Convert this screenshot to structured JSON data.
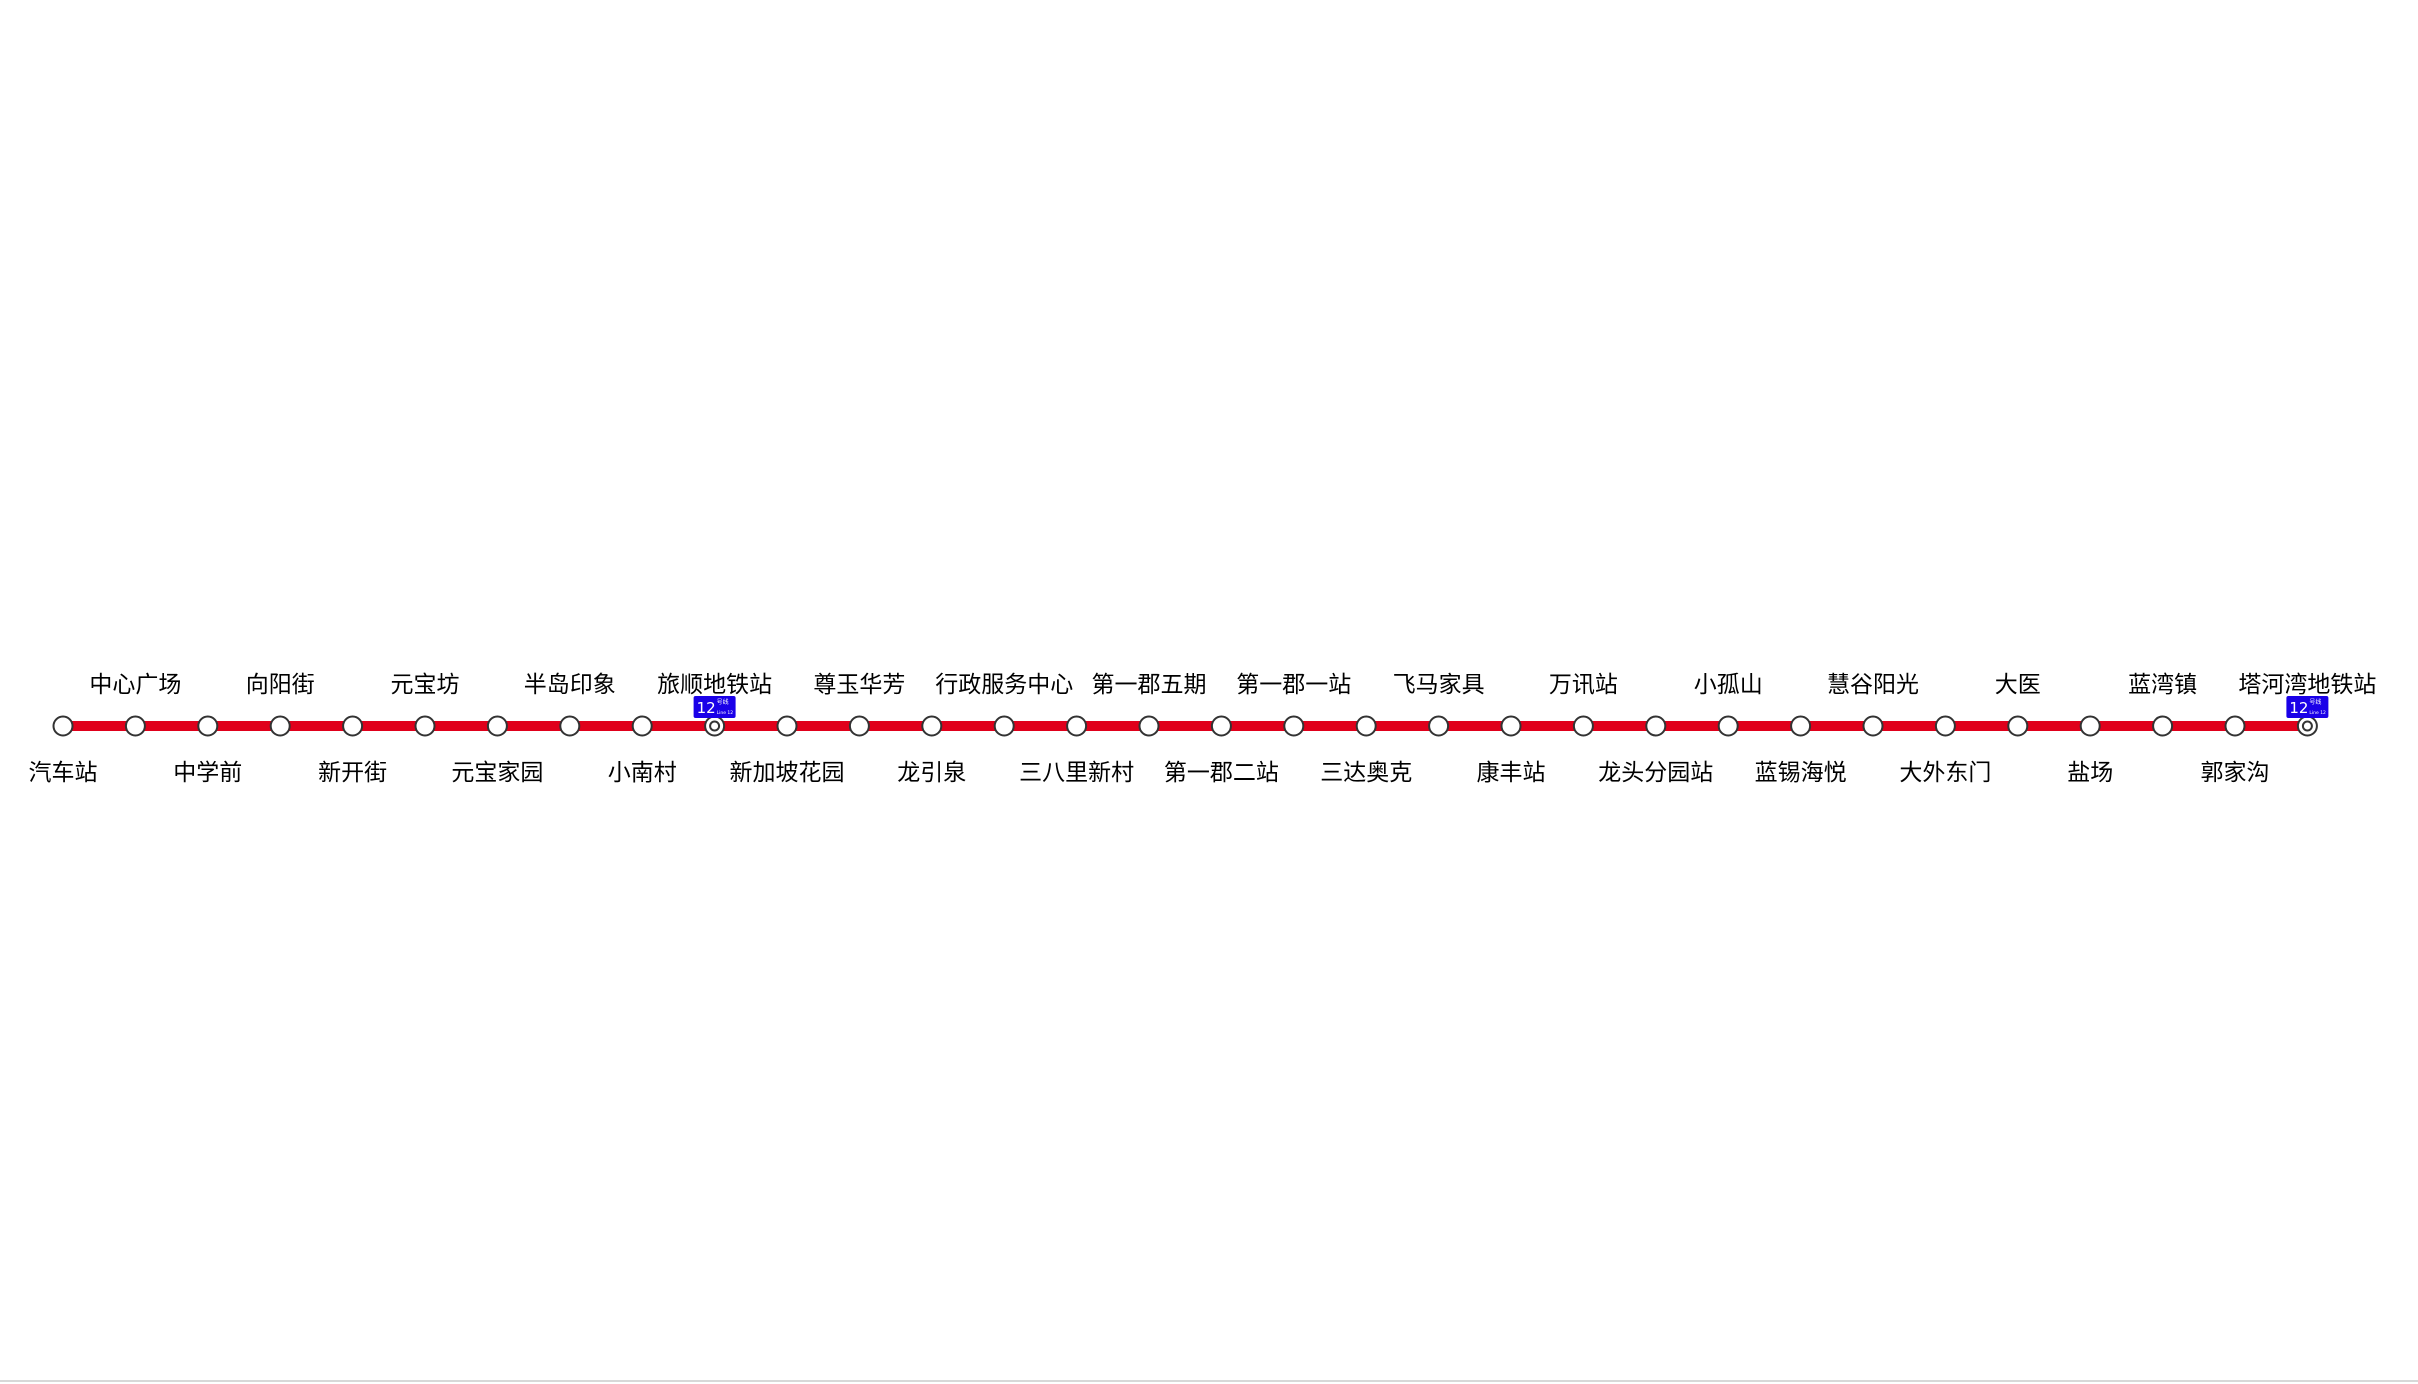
{
  "colors": {
    "line": "#E0001B",
    "station_fill": "#ffffff",
    "station_stroke": "#333333",
    "transfer_badge": "#1A00E8",
    "label": "#000000"
  },
  "stations": [
    {
      "name": "汽车站",
      "label_side": "below"
    },
    {
      "name": "中心广场",
      "label_side": "above"
    },
    {
      "name": "中学前",
      "label_side": "below"
    },
    {
      "name": "向阳街",
      "label_side": "above"
    },
    {
      "name": "新开街",
      "label_side": "below"
    },
    {
      "name": "元宝坊",
      "label_side": "above"
    },
    {
      "name": "元宝家园",
      "label_side": "below"
    },
    {
      "name": "半岛印象",
      "label_side": "above"
    },
    {
      "name": "小南村",
      "label_side": "below"
    },
    {
      "name": "旅顺地铁站",
      "label_side": "above",
      "transfer": true
    },
    {
      "name": "新加坡花园",
      "label_side": "below"
    },
    {
      "name": "尊玉华芳",
      "label_side": "above"
    },
    {
      "name": "龙引泉",
      "label_side": "below"
    },
    {
      "name": "行政服务中心",
      "label_side": "above"
    },
    {
      "name": "三八里新村",
      "label_side": "below"
    },
    {
      "name": "第一郡五期",
      "label_side": "above"
    },
    {
      "name": "第一郡二站",
      "label_side": "below"
    },
    {
      "name": "第一郡一站",
      "label_side": "above"
    },
    {
      "name": "三达奥克",
      "label_side": "below"
    },
    {
      "name": "飞马家具",
      "label_side": "above"
    },
    {
      "name": "康丰站",
      "label_side": "below"
    },
    {
      "name": "万讯站",
      "label_side": "above"
    },
    {
      "name": "龙头分园站",
      "label_side": "below"
    },
    {
      "name": "小孤山",
      "label_side": "above"
    },
    {
      "name": "蓝锡海悦",
      "label_side": "below"
    },
    {
      "name": "慧谷阳光",
      "label_side": "above"
    },
    {
      "name": "大外东门",
      "label_side": "below"
    },
    {
      "name": "大医",
      "label_side": "above"
    },
    {
      "name": "盐场",
      "label_side": "below"
    },
    {
      "name": "蓝湾镇",
      "label_side": "above"
    },
    {
      "name": "郭家沟",
      "label_side": "below"
    },
    {
      "name": "塔河湾地铁站",
      "label_side": "above",
      "transfer": true
    }
  ],
  "transfer_badge": {
    "number": "12",
    "sub_label": "号线",
    "en_label": "Line 12"
  }
}
